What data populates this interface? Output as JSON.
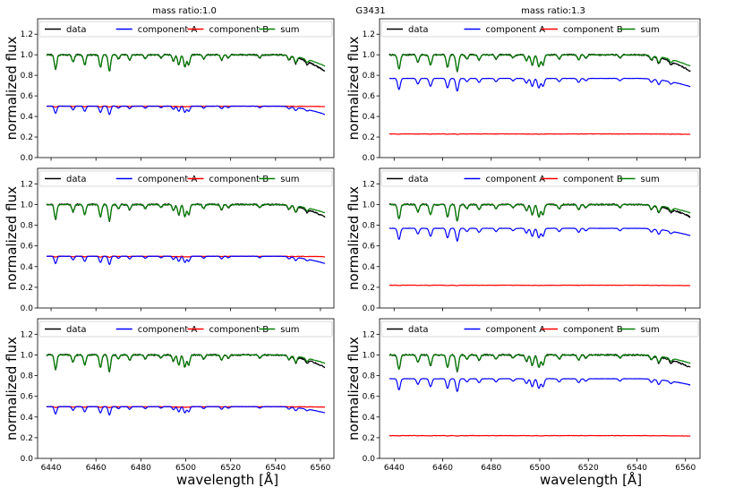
{
  "figure_title": "G3431",
  "columns": [
    {
      "title": "mass ratio:1.0"
    },
    {
      "title": "mass ratio:1.3"
    }
  ],
  "colors": {
    "data": "#000000",
    "component_a": "#0000ff",
    "component_b": "#ff0000",
    "sum": "#008000"
  },
  "chart_data": {
    "type": "line",
    "layout": "3x2 grid",
    "xlabel": "wavelength [Å]",
    "ylabel": "normalized flux",
    "xlim": [
      6434,
      6566
    ],
    "ylim": [
      0.0,
      1.35
    ],
    "xticks": [
      6440,
      6460,
      6480,
      6500,
      6520,
      6540,
      6560
    ],
    "yticks": [
      0.0,
      0.2,
      0.4,
      0.6,
      0.8,
      1.0,
      1.2
    ],
    "wavelength_range": [
      6438,
      6562
    ],
    "legend": {
      "position": "top",
      "entries": [
        "data",
        "component A",
        "component B",
        "sum"
      ]
    },
    "absorption_lines": [
      {
        "wavelength": 6442,
        "depth": 0.14
      },
      {
        "wavelength": 6449.8,
        "depth": 0.07
      },
      {
        "wavelength": 6455,
        "depth": 0.1
      },
      {
        "wavelength": 6462,
        "depth": 0.12
      },
      {
        "wavelength": 6466,
        "depth": 0.16
      },
      {
        "wavelength": 6470,
        "depth": 0.04
      },
      {
        "wavelength": 6475,
        "depth": 0.05
      },
      {
        "wavelength": 6482,
        "depth": 0.04
      },
      {
        "wavelength": 6489,
        "depth": 0.03
      },
      {
        "wavelength": 6494.5,
        "depth": 0.06
      },
      {
        "wavelength": 6496.9,
        "depth": 0.1
      },
      {
        "wavelength": 6499.6,
        "depth": 0.12
      },
      {
        "wavelength": 6501.3,
        "depth": 0.1
      },
      {
        "wavelength": 6508,
        "depth": 0.04
      },
      {
        "wavelength": 6516,
        "depth": 0.05
      },
      {
        "wavelength": 6519,
        "depth": 0.03
      },
      {
        "wavelength": 6533,
        "depth": 0.03
      },
      {
        "wavelength": 6546,
        "depth": 0.04
      },
      {
        "wavelength": 6549,
        "depth": 0.06
      },
      {
        "wavelength": 6554,
        "depth": 0.03
      }
    ],
    "panels": [
      {
        "name": "row1-ratio1.0",
        "row": 1,
        "column": 1,
        "sum_level": 1.0,
        "component_a_level": 0.5,
        "component_b_level": 0.5,
        "edge_drop_data": 0.16,
        "edge_drop_sum": 0.11,
        "edge_drop_a": 0.08
      },
      {
        "name": "row1-ratio1.3",
        "row": 1,
        "column": 2,
        "sum_level": 1.0,
        "component_a_level": 0.77,
        "component_b_level": 0.23,
        "edge_drop_data": 0.16,
        "edge_drop_sum": 0.11,
        "edge_drop_a": 0.08
      },
      {
        "name": "row2-ratio1.0",
        "row": 2,
        "column": 1,
        "sum_level": 1.0,
        "component_a_level": 0.5,
        "component_b_level": 0.5,
        "edge_drop_data": 0.12,
        "edge_drop_sum": 0.08,
        "edge_drop_a": 0.07
      },
      {
        "name": "row2-ratio1.3",
        "row": 2,
        "column": 2,
        "sum_level": 1.0,
        "component_a_level": 0.77,
        "component_b_level": 0.22,
        "edge_drop_data": 0.12,
        "edge_drop_sum": 0.08,
        "edge_drop_a": 0.07
      },
      {
        "name": "row3-ratio1.0",
        "row": 3,
        "column": 1,
        "sum_level": 1.0,
        "component_a_level": 0.5,
        "component_b_level": 0.5,
        "edge_drop_data": 0.12,
        "edge_drop_sum": 0.08,
        "edge_drop_a": 0.06
      },
      {
        "name": "row3-ratio1.3",
        "row": 3,
        "column": 2,
        "sum_level": 1.0,
        "component_a_level": 0.77,
        "component_b_level": 0.22,
        "edge_drop_data": 0.12,
        "edge_drop_sum": 0.08,
        "edge_drop_a": 0.06
      }
    ]
  }
}
